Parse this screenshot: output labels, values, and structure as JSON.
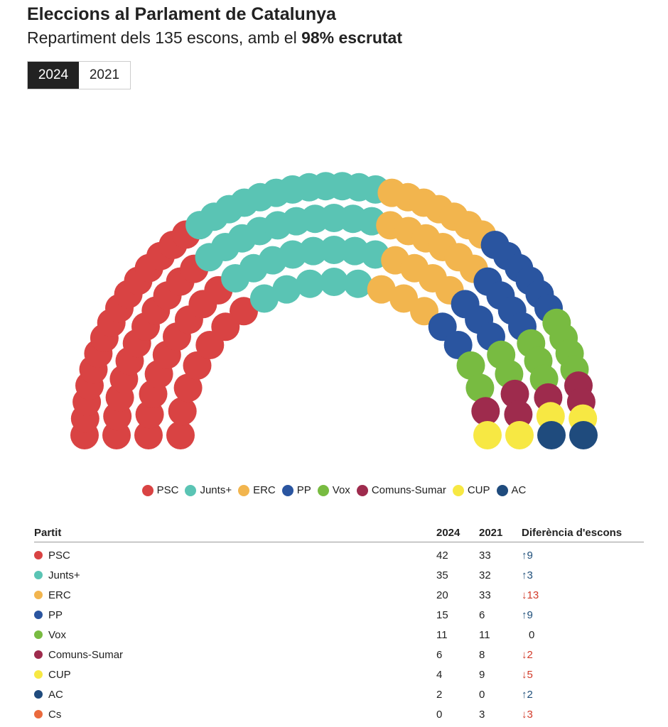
{
  "header": {
    "title": "Eleccions al Parlament de Catalunya",
    "subtitle_prefix": "Repartiment dels 135 escons, amb el ",
    "subtitle_bold": "98% escrutat"
  },
  "toggle": {
    "options": [
      "2024",
      "2021"
    ],
    "selected": "2024"
  },
  "chart_data": {
    "type": "parliament",
    "total_seats": 135,
    "year": "2024",
    "series": [
      {
        "name": "PSC",
        "seats": 42,
        "color": "#d94343"
      },
      {
        "name": "Junts+",
        "seats": 35,
        "color": "#5ac4b4"
      },
      {
        "name": "ERC",
        "seats": 20,
        "color": "#f2b54e"
      },
      {
        "name": "PP",
        "seats": 15,
        "color": "#2a55a0"
      },
      {
        "name": "Vox",
        "seats": 11,
        "color": "#78bb41"
      },
      {
        "name": "Comuns-Sumar",
        "seats": 6,
        "color": "#9e2b4d"
      },
      {
        "name": "CUP",
        "seats": 4,
        "color": "#f7e843"
      },
      {
        "name": "AC",
        "seats": 2,
        "color": "#1f4b7d"
      }
    ],
    "legend_position": "bottom"
  },
  "table": {
    "headers": [
      "Partit",
      "2024",
      "2021",
      "Diferència d'escons"
    ],
    "rows": [
      {
        "party": "PSC",
        "color": "#d94343",
        "y2024": "42",
        "y2021": "33",
        "arrow": "↑",
        "diff": "9",
        "dir": "up"
      },
      {
        "party": "Junts+",
        "color": "#5ac4b4",
        "y2024": "35",
        "y2021": "32",
        "arrow": "↑",
        "diff": "3",
        "dir": "up"
      },
      {
        "party": "ERC",
        "color": "#f2b54e",
        "y2024": "20",
        "y2021": "33",
        "arrow": "↓",
        "diff": "13",
        "dir": "down"
      },
      {
        "party": "PP",
        "color": "#2a55a0",
        "y2024": "15",
        "y2021": "6",
        "arrow": "↑",
        "diff": "9",
        "dir": "up"
      },
      {
        "party": "Vox",
        "color": "#78bb41",
        "y2024": "11",
        "y2021": "11",
        "arrow": "",
        "diff": "0",
        "dir": "same"
      },
      {
        "party": "Comuns-Sumar",
        "color": "#9e2b4d",
        "y2024": "6",
        "y2021": "8",
        "arrow": "↓",
        "diff": "2",
        "dir": "down"
      },
      {
        "party": "CUP",
        "color": "#f7e843",
        "y2024": "4",
        "y2021": "9",
        "arrow": "↓",
        "diff": "5",
        "dir": "down"
      },
      {
        "party": "AC",
        "color": "#1f4b7d",
        "y2024": "2",
        "y2021": "0",
        "arrow": "↑",
        "diff": "2",
        "dir": "up"
      },
      {
        "party": "Cs",
        "color": "#ea6a3d",
        "y2024": "0",
        "y2021": "3",
        "arrow": "↓",
        "diff": "3",
        "dir": "down"
      }
    ]
  }
}
